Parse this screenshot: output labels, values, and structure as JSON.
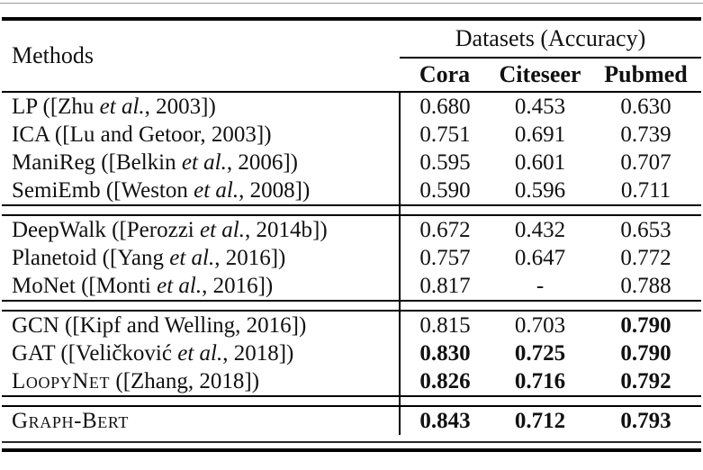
{
  "colors": {
    "background": "#ffffff",
    "text": "#111111",
    "rule": "#000000"
  },
  "table": {
    "header": {
      "methods_label": "Methods",
      "datasets_label": "Datasets (Accuracy)",
      "columns": [
        "Cora",
        "Citeseer",
        "Pubmed"
      ]
    },
    "groups": [
      {
        "rows": [
          {
            "method_parts": [
              {
                "text": "LP ([Zhu ",
                "style": "normal"
              },
              {
                "text": "et al.",
                "style": "italic"
              },
              {
                "text": ", 2003])",
                "style": "normal"
              }
            ],
            "values": [
              {
                "text": "0.680",
                "bold": false
              },
              {
                "text": "0.453",
                "bold": false
              },
              {
                "text": "0.630",
                "bold": false
              }
            ]
          },
          {
            "method_parts": [
              {
                "text": "ICA ([Lu and Getoor, 2003])",
                "style": "normal"
              }
            ],
            "values": [
              {
                "text": "0.751",
                "bold": false
              },
              {
                "text": "0.691",
                "bold": false
              },
              {
                "text": "0.739",
                "bold": false
              }
            ]
          },
          {
            "method_parts": [
              {
                "text": "ManiReg ([Belkin ",
                "style": "normal"
              },
              {
                "text": "et al.",
                "style": "italic"
              },
              {
                "text": ", 2006])",
                "style": "normal"
              }
            ],
            "values": [
              {
                "text": "0.595",
                "bold": false
              },
              {
                "text": "0.601",
                "bold": false
              },
              {
                "text": "0.707",
                "bold": false
              }
            ]
          },
          {
            "method_parts": [
              {
                "text": "SemiEmb ([Weston ",
                "style": "normal"
              },
              {
                "text": "et al.",
                "style": "italic"
              },
              {
                "text": ", 2008])",
                "style": "normal"
              }
            ],
            "values": [
              {
                "text": "0.590",
                "bold": false
              },
              {
                "text": "0.596",
                "bold": false
              },
              {
                "text": "0.711",
                "bold": false
              }
            ]
          }
        ]
      },
      {
        "rows": [
          {
            "method_parts": [
              {
                "text": "DeepWalk ([Perozzi ",
                "style": "normal"
              },
              {
                "text": "et al.",
                "style": "italic"
              },
              {
                "text": ", 2014b])",
                "style": "normal"
              }
            ],
            "values": [
              {
                "text": "0.672",
                "bold": false
              },
              {
                "text": "0.432",
                "bold": false
              },
              {
                "text": "0.653",
                "bold": false
              }
            ]
          },
          {
            "method_parts": [
              {
                "text": "Planetoid ([Yang ",
                "style": "normal"
              },
              {
                "text": "et al.",
                "style": "italic"
              },
              {
                "text": ", 2016])",
                "style": "normal"
              }
            ],
            "values": [
              {
                "text": "0.757",
                "bold": false
              },
              {
                "text": "0.647",
                "bold": false
              },
              {
                "text": "0.772",
                "bold": false
              }
            ]
          },
          {
            "method_parts": [
              {
                "text": "MoNet ([Monti ",
                "style": "normal"
              },
              {
                "text": "et al.",
                "style": "italic"
              },
              {
                "text": ", 2016])",
                "style": "normal"
              }
            ],
            "values": [
              {
                "text": "0.817",
                "bold": false
              },
              {
                "text": "-",
                "bold": false
              },
              {
                "text": "0.788",
                "bold": false
              }
            ]
          }
        ]
      },
      {
        "rows": [
          {
            "method_parts": [
              {
                "text": "GCN ([Kipf and Welling, 2016])",
                "style": "normal"
              }
            ],
            "values": [
              {
                "text": "0.815",
                "bold": false
              },
              {
                "text": "0.703",
                "bold": false
              },
              {
                "text": "0.790",
                "bold": true
              }
            ]
          },
          {
            "method_parts": [
              {
                "text": "GAT ([Veličković ",
                "style": "normal"
              },
              {
                "text": "et al.",
                "style": "italic"
              },
              {
                "text": ", 2018])",
                "style": "normal"
              }
            ],
            "values": [
              {
                "text": "0.830",
                "bold": true
              },
              {
                "text": "0.725",
                "bold": true
              },
              {
                "text": "0.790",
                "bold": true
              }
            ]
          },
          {
            "method_parts": [
              {
                "text": "LoopyNet",
                "style": "smallcaps"
              },
              {
                "text": " ([Zhang, 2018])",
                "style": "normal"
              }
            ],
            "values": [
              {
                "text": "0.826",
                "bold": true
              },
              {
                "text": "0.716",
                "bold": true
              },
              {
                "text": "0.792",
                "bold": true
              }
            ]
          }
        ]
      },
      {
        "rows": [
          {
            "method_parts": [
              {
                "text": "Graph-Bert",
                "style": "smallcaps"
              }
            ],
            "values": [
              {
                "text": "0.843",
                "bold": true
              },
              {
                "text": "0.712",
                "bold": true
              },
              {
                "text": "0.793",
                "bold": true
              }
            ]
          }
        ]
      }
    ]
  }
}
